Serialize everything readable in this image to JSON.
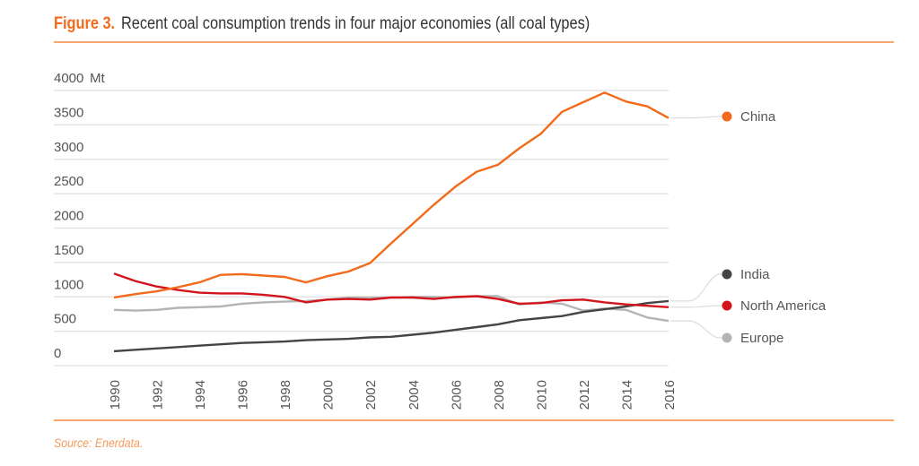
{
  "header": {
    "figure_label": "Figure 3.",
    "title": "Recent coal consumption trends in four major economies (all coal types)"
  },
  "footer": {
    "source": "Source: Enerdata."
  },
  "chart_data": {
    "type": "line",
    "title": "Recent coal consumption trends in four major economies (all coal types)",
    "xlabel": "",
    "ylabel": "Mt",
    "ylim": [
      0,
      4000
    ],
    "yticks": [
      0,
      500,
      1000,
      1500,
      2000,
      2500,
      3000,
      3500,
      4000
    ],
    "ytick_labels": [
      "0",
      "500",
      "1000",
      "1500",
      "2000",
      "2500",
      "3000",
      "3500",
      "4000"
    ],
    "y_unit": "Mt",
    "xticks": [
      "1990",
      "1992",
      "1994",
      "1996",
      "1998",
      "2000",
      "2002",
      "2004",
      "2006",
      "2008",
      "2010",
      "2012",
      "2014",
      "2016"
    ],
    "x": [
      1990,
      1991,
      1992,
      1993,
      1994,
      1995,
      1996,
      1997,
      1998,
      1999,
      2000,
      2001,
      2002,
      2003,
      2004,
      2005,
      2006,
      2007,
      2008,
      2009,
      2010,
      2011,
      2012,
      2013,
      2014,
      2015,
      2016
    ],
    "grid": true,
    "legend": "right",
    "series": [
      {
        "name": "China",
        "color": "#f26a1b",
        "values": [
          990,
          1040,
          1080,
          1140,
          1210,
          1320,
          1330,
          1310,
          1290,
          1210,
          1300,
          1370,
          1490,
          1780,
          2060,
          2340,
          2600,
          2820,
          2920,
          3160,
          3370,
          3690,
          3830,
          3970,
          3840,
          3770,
          3600
        ]
      },
      {
        "name": "India",
        "color": "#454545",
        "values": [
          210,
          230,
          250,
          270,
          290,
          310,
          330,
          340,
          350,
          370,
          380,
          390,
          410,
          420,
          450,
          480,
          520,
          560,
          600,
          660,
          690,
          720,
          780,
          820,
          860,
          910,
          940
        ]
      },
      {
        "name": "North America",
        "color": "#d4141c",
        "values": [
          1340,
          1230,
          1150,
          1100,
          1060,
          1050,
          1050,
          1030,
          1000,
          920,
          960,
          970,
          960,
          990,
          990,
          970,
          1000,
          1010,
          970,
          900,
          910,
          950,
          960,
          920,
          890,
          870,
          850
        ]
      },
      {
        "name": "Europe",
        "color": "#b4b4b4",
        "values": [
          810,
          800,
          810,
          840,
          850,
          860,
          900,
          920,
          930,
          940,
          960,
          990,
          990,
          990,
          1000,
          1000,
          990,
          1010,
          1010,
          890,
          920,
          900,
          800,
          830,
          810,
          700,
          650
        ]
      }
    ]
  }
}
